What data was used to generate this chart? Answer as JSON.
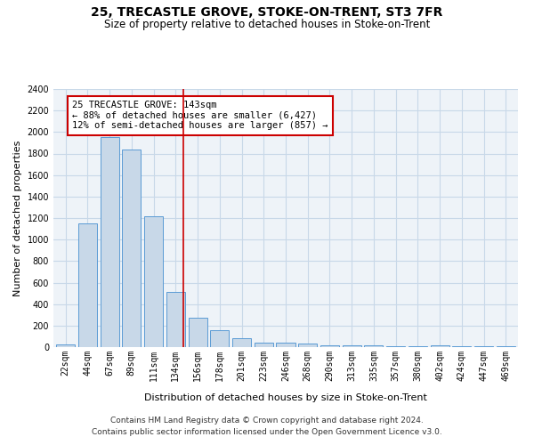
{
  "title": "25, TRECASTLE GROVE, STOKE-ON-TRENT, ST3 7FR",
  "subtitle": "Size of property relative to detached houses in Stoke-on-Trent",
  "xlabel": "Distribution of detached houses by size in Stoke-on-Trent",
  "ylabel": "Number of detached properties",
  "categories": [
    "22sqm",
    "44sqm",
    "67sqm",
    "89sqm",
    "111sqm",
    "134sqm",
    "156sqm",
    "178sqm",
    "201sqm",
    "223sqm",
    "246sqm",
    "268sqm",
    "290sqm",
    "313sqm",
    "335sqm",
    "357sqm",
    "380sqm",
    "402sqm",
    "424sqm",
    "447sqm",
    "469sqm"
  ],
  "values": [
    25,
    1150,
    1950,
    1840,
    1220,
    515,
    270,
    155,
    85,
    45,
    40,
    30,
    20,
    20,
    15,
    10,
    10,
    20,
    5,
    5,
    5
  ],
  "bar_color": "#c8d8e8",
  "bar_edge_color": "#5b9bd5",
  "vline_index": 5,
  "vline_color": "#cc0000",
  "annotation_text": "25 TRECASTLE GROVE: 143sqm\n← 88% of detached houses are smaller (6,427)\n12% of semi-detached houses are larger (857) →",
  "annotation_box_color": "#ffffff",
  "annotation_box_edge": "#cc0000",
  "ylim": [
    0,
    2400
  ],
  "yticks": [
    0,
    200,
    400,
    600,
    800,
    1000,
    1200,
    1400,
    1600,
    1800,
    2000,
    2200,
    2400
  ],
  "grid_color": "#c8d8e8",
  "background_color": "#eef3f8",
  "footer_line1": "Contains HM Land Registry data © Crown copyright and database right 2024.",
  "footer_line2": "Contains public sector information licensed under the Open Government Licence v3.0.",
  "title_fontsize": 10,
  "subtitle_fontsize": 8.5,
  "xlabel_fontsize": 8,
  "ylabel_fontsize": 8,
  "tick_fontsize": 7,
  "annotation_fontsize": 7.5,
  "footer_fontsize": 6.5
}
